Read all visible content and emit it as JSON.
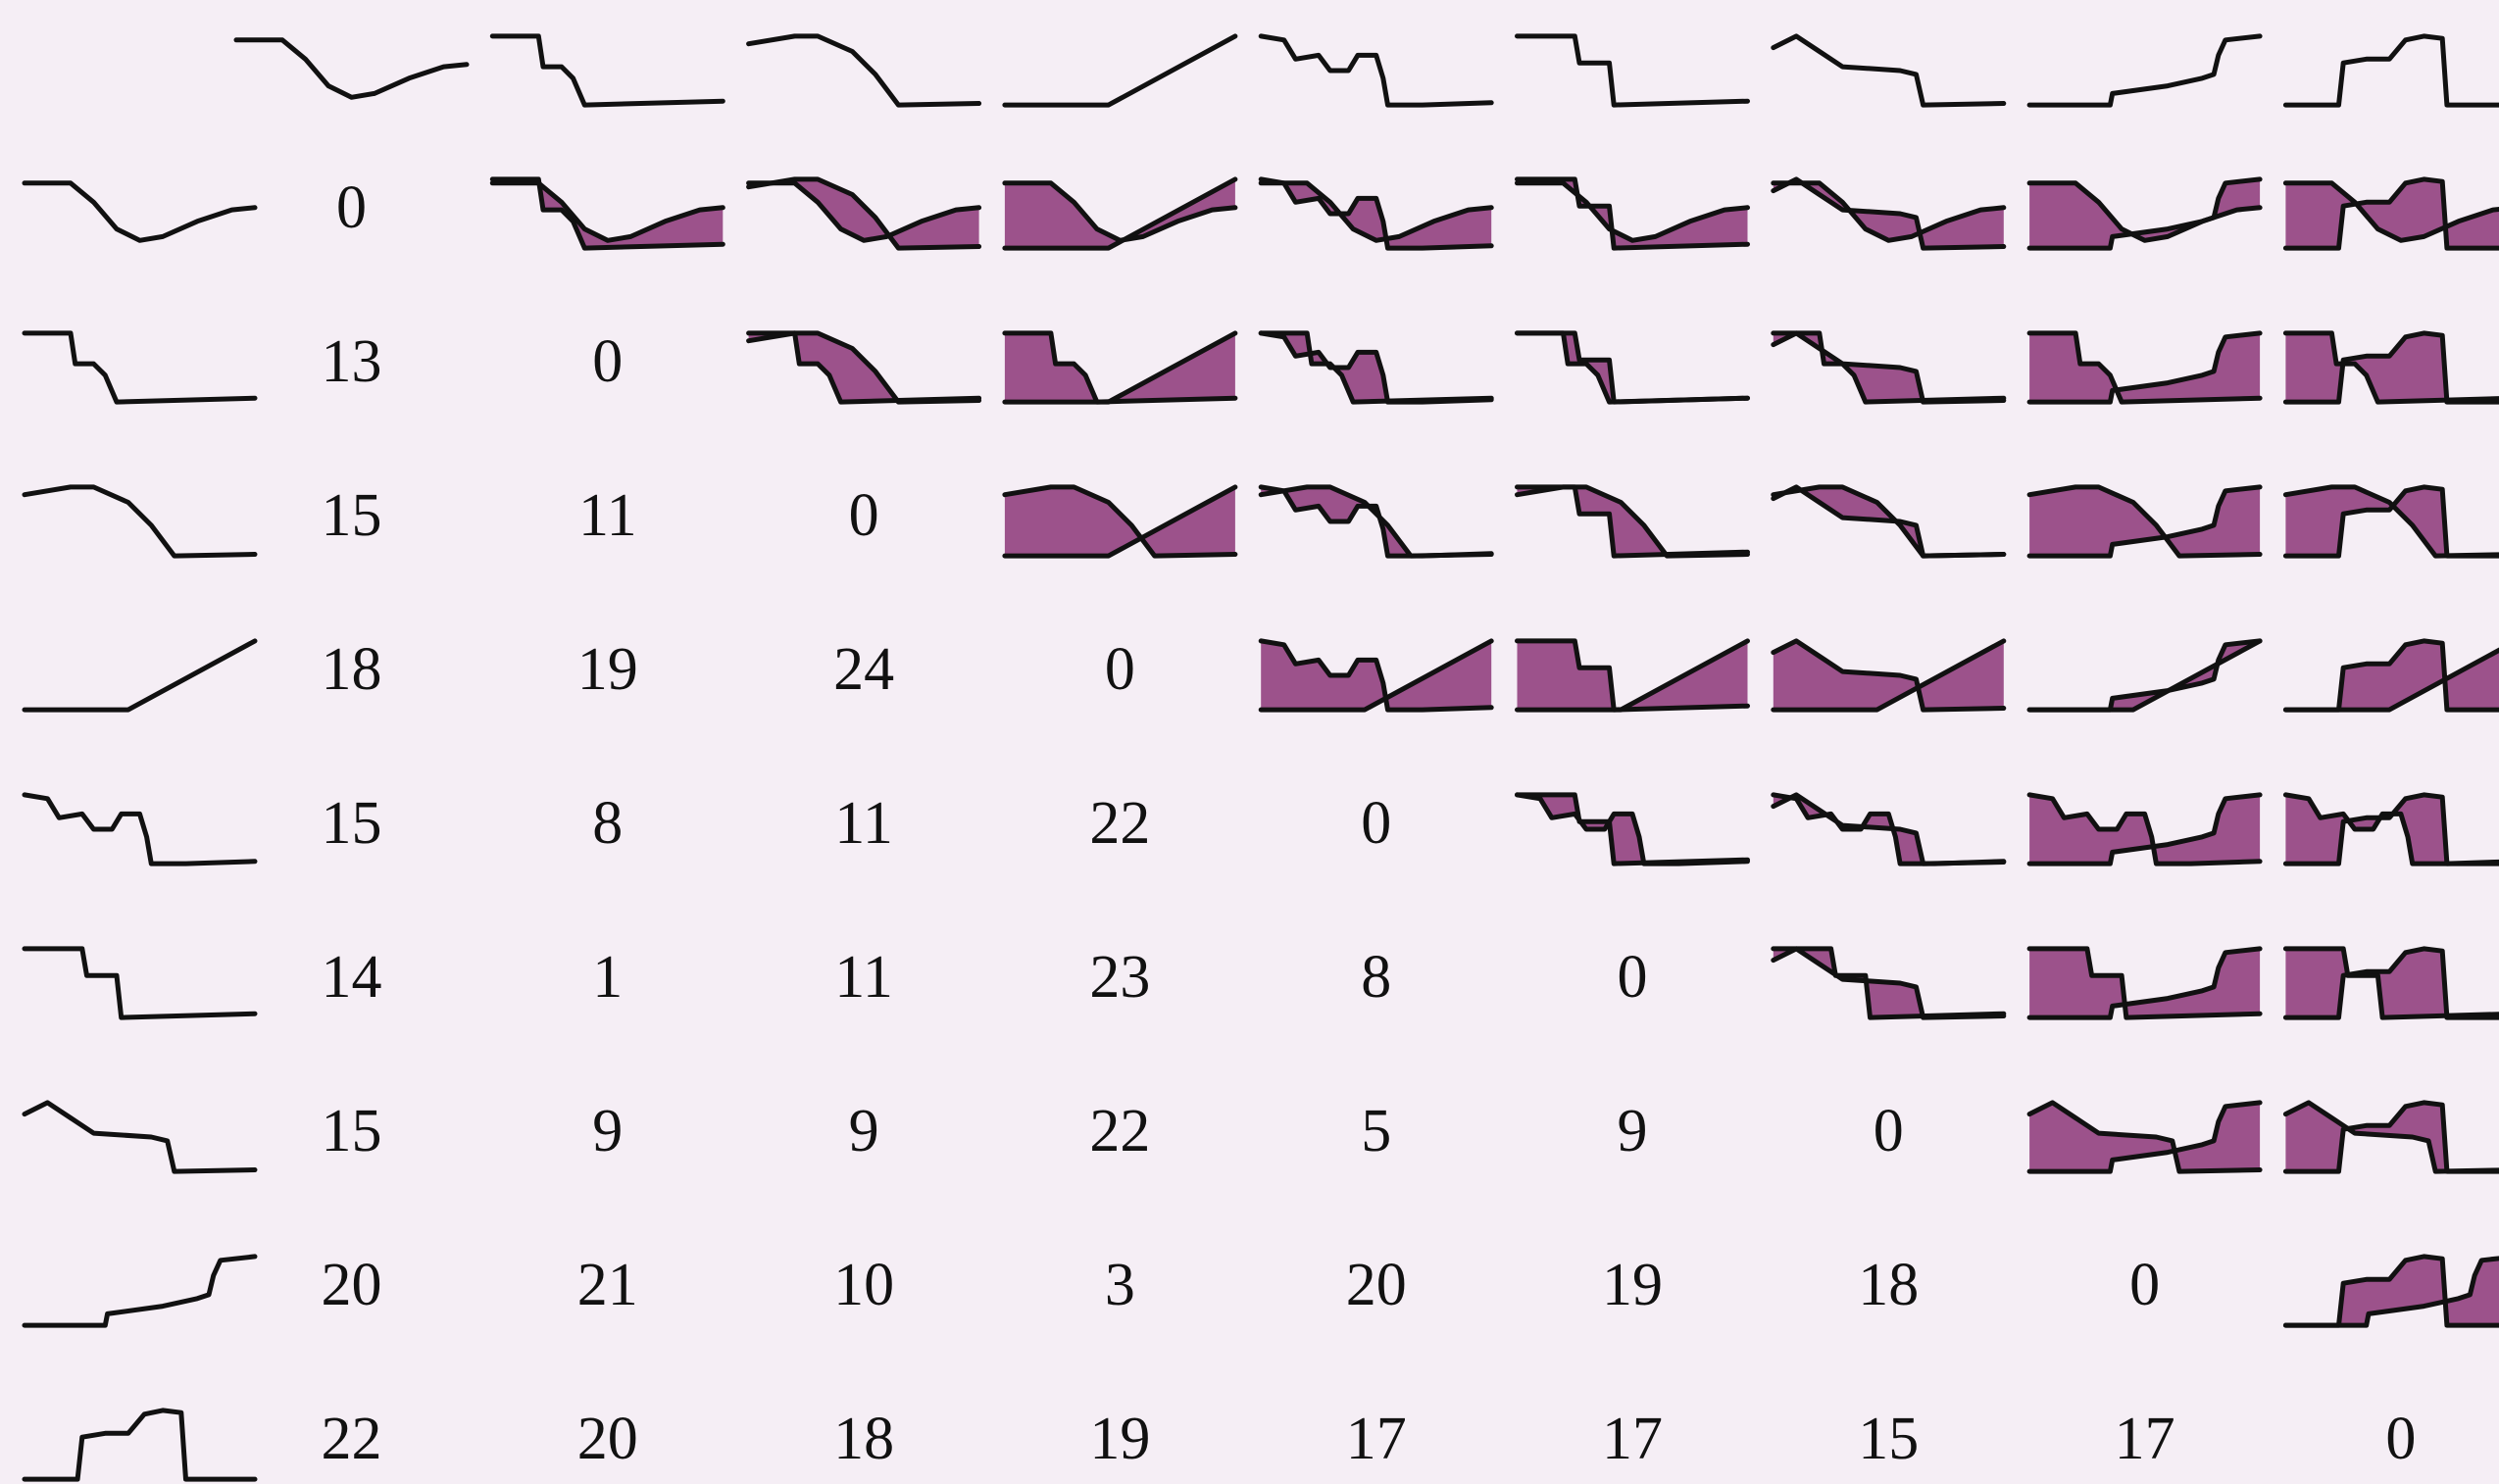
{
  "matrix": {
    "rows": [
      [
        0
      ],
      [
        13,
        0
      ],
      [
        15,
        11,
        0
      ],
      [
        18,
        19,
        24,
        0
      ],
      [
        15,
        8,
        11,
        22,
        0
      ],
      [
        14,
        1,
        11,
        23,
        8,
        0
      ],
      [
        15,
        9,
        9,
        22,
        5,
        9,
        0
      ],
      [
        20,
        21,
        10,
        3,
        20,
        19,
        18,
        0
      ],
      [
        22,
        20,
        18,
        19,
        17,
        17,
        15,
        17,
        0
      ]
    ]
  }
}
